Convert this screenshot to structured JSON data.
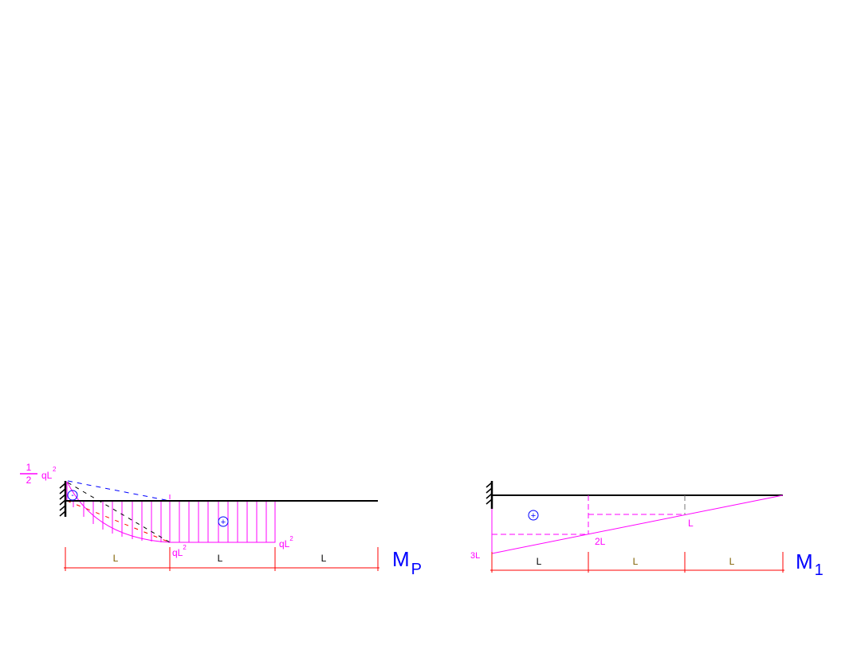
{
  "colors": {
    "beam": "#000000",
    "diagram": "#ff00ff",
    "dimension": "#ff0000",
    "sign": "#0000ff",
    "title": "#0000ff",
    "span_label": "#806000"
  },
  "left": {
    "title_main": "M",
    "title_sub": "P",
    "fixed_moment_num": "1",
    "fixed_moment_den": "2",
    "fixed_moment_term": "qL",
    "fixed_moment_exp": "2",
    "mid_moment": "qL",
    "mid_moment_exp": "2",
    "end_moment": "qL",
    "end_moment_exp": "2",
    "neg_sign": "-",
    "pos_sign": "+",
    "spans": [
      "L",
      "L",
      "L"
    ]
  },
  "right": {
    "title_main": "M",
    "title_sub": "1",
    "values": [
      "3L",
      "2L",
      "L"
    ],
    "pos_sign": "+",
    "spans": [
      "L",
      "L",
      "L"
    ]
  }
}
